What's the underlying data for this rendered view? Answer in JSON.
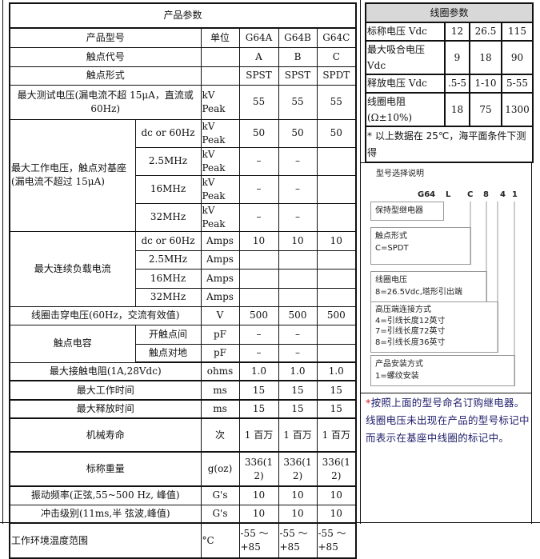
{
  "spec": {
    "title": "产品参数",
    "header": {
      "label": "产品型号",
      "unit": "单位",
      "models": [
        "G64A",
        "G64B",
        "G64C"
      ]
    },
    "code": {
      "label": "触点代号",
      "values": [
        "A",
        "B",
        "C"
      ]
    },
    "form": {
      "label": "触点形式",
      "values": [
        "SPST",
        "SPST",
        "SPDT"
      ]
    },
    "test_voltage": {
      "label": "最大测试电压(漏电流不超 15μA，直流或 60Hz)",
      "unit": "kV Peak",
      "values": [
        "55",
        "55",
        "55"
      ]
    },
    "work_voltage": {
      "label": "最大工作电压，触点对基座(漏电流不超过 15μA)",
      "rows": [
        {
          "freq": "dc or 60Hz",
          "unit": "kV Peak",
          "values": [
            "50",
            "50",
            "50"
          ]
        },
        {
          "freq": "2.5MHz",
          "unit": "kV Peak",
          "values": [
            "–",
            "–",
            ""
          ]
        },
        {
          "freq": "16MHz",
          "unit": "kV Peak",
          "values": [
            "–",
            "–",
            ""
          ]
        },
        {
          "freq": "32MHz",
          "unit": "kV Peak",
          "values": [
            "–",
            "–",
            ""
          ]
        }
      ]
    },
    "load_current": {
      "label": "最大连续负载电流",
      "rows": [
        {
          "freq": "dc or 60Hz",
          "unit": "Amps",
          "values": [
            "10",
            "10",
            "10"
          ]
        },
        {
          "freq": "2.5MHz",
          "unit": "Amps",
          "values": [
            "",
            "",
            ""
          ]
        },
        {
          "freq": "16MHz",
          "unit": "Amps",
          "values": [
            "",
            "",
            ""
          ]
        },
        {
          "freq": "32MHz",
          "unit": "Amps",
          "values": [
            "",
            "",
            ""
          ]
        }
      ]
    },
    "breakdown": {
      "label": "线圈击穿电压(60Hz，交流有效值)",
      "unit": "V",
      "values": [
        "500",
        "500",
        "500"
      ]
    },
    "capacitance": {
      "label": "触点电容",
      "rows": [
        {
          "sub": "开触点间",
          "unit": "pF",
          "values": [
            "–",
            "–",
            ""
          ]
        },
        {
          "sub": "触点对地",
          "unit": "pF",
          "values": [
            "–",
            "–",
            ""
          ]
        }
      ]
    },
    "resistance": {
      "label": "最大接触电阻(1A,28Vdc)",
      "unit": "ohms",
      "values": [
        "1.0",
        "1.0",
        "1.0"
      ]
    },
    "op_time": {
      "label": "最大工作时间",
      "unit": "ms",
      "values": [
        "15",
        "15",
        "15"
      ]
    },
    "release_time": {
      "label": "最大释放时间",
      "unit": "ms",
      "values": [
        "15",
        "15",
        "15"
      ]
    },
    "life": {
      "label": "机械寿命",
      "unit": "次",
      "values": [
        "1 百万",
        "1 百万",
        "1 百万"
      ]
    },
    "weight": {
      "label": "标称重量",
      "unit": "g(oz)",
      "values": [
        "336(12)",
        "336(12)",
        "336(12)"
      ]
    },
    "vibration": {
      "label": "振动频率(正弦,55~500 Hz, 峰值)",
      "unit": "G's",
      "values": [
        "10",
        "10",
        "10"
      ]
    },
    "shock": {
      "label": "冲击级别(11ms,半 弦波,峰值)",
      "unit": "G's",
      "values": [
        "10",
        "10",
        "10"
      ]
    },
    "temp": {
      "label": "工作环境温度范围",
      "unit": "°C",
      "values": [
        "-55 ～+85",
        "-55 ～+85",
        "-55 ～+85"
      ]
    }
  },
  "coil": {
    "title": "线圈参数",
    "rows": [
      {
        "label": "标称电压 Vdc",
        "values": [
          "12",
          "26.5",
          "115"
        ]
      },
      {
        "label": "最大吸合电压 Vdc",
        "values": [
          "9",
          "18",
          "90"
        ]
      },
      {
        "label": "释放电压 Vdc",
        "values": [
          ".5-5",
          "1-10",
          "5-55"
        ]
      },
      {
        "label": "线圈电阻(Ω±10%)",
        "values": [
          "18",
          "75",
          "1300"
        ]
      }
    ],
    "footnote": "* 以上数据在 25℃，海平面条件下测得"
  },
  "diagram": {
    "title": "型号选择说明",
    "code": [
      "G64",
      "L",
      "C",
      "8",
      "4",
      "1"
    ],
    "boxes": [
      {
        "title": "保持型继电器",
        "lines": []
      },
      {
        "title": "触点形式",
        "lines": [
          "C=SPDT"
        ]
      },
      {
        "title": "线圈电压",
        "lines": [
          "8=26.5Vdc,塔形引出端"
        ]
      },
      {
        "title": "高压端连接方式",
        "lines": [
          "4=引线长度12英寸",
          "7=引线长度72英寸",
          "8=引线长度36英寸"
        ]
      },
      {
        "title": "产品安装方式",
        "lines": [
          "1=螺纹安装"
        ]
      }
    ]
  },
  "note": {
    "star": "*",
    "text": "按照上面的型号命名订购继电器。线圈电压未出现在产品的型号标记中而表示在基座中线圈的标记中。"
  },
  "colors": {
    "note_text": "#1c1c6a",
    "note_star": "#dd1111",
    "coil_title_bg": "#d8d8d8"
  }
}
